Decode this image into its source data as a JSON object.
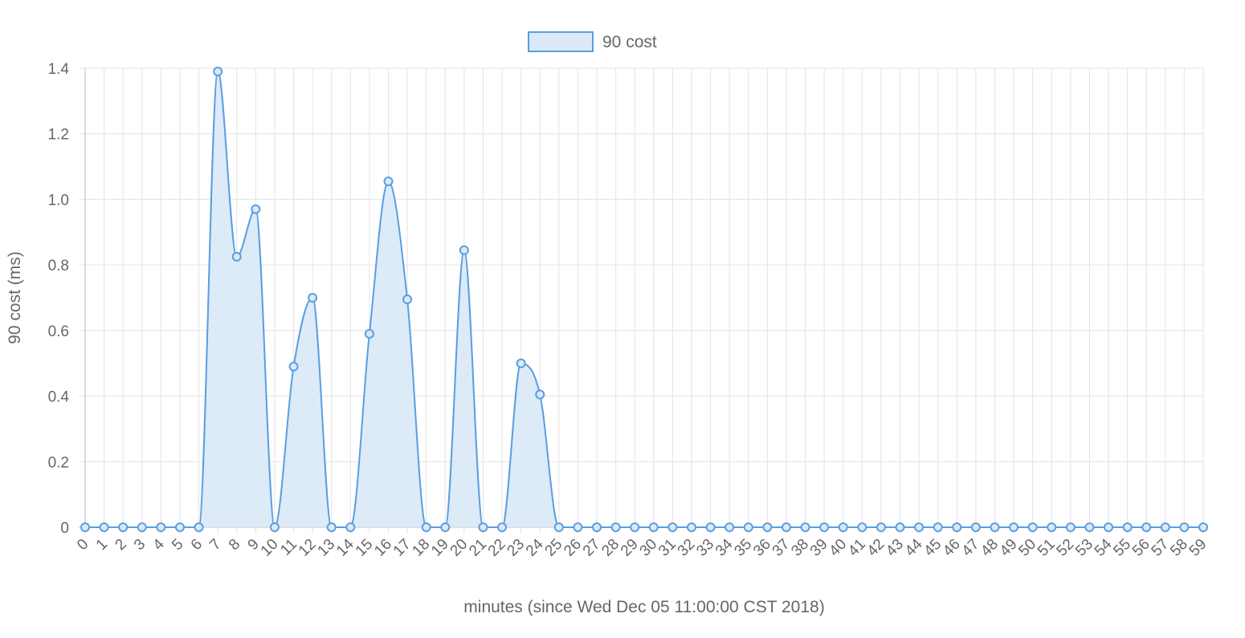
{
  "chart_data": {
    "type": "area",
    "title": "",
    "legend": {
      "position": "top",
      "entries": [
        "90 cost"
      ]
    },
    "xlabel": "minutes (since Wed Dec 05 11:00:00 CST 2018)",
    "ylabel": "90 cost (ms)",
    "ylim": [
      0,
      1.4
    ],
    "yticks": [
      "0",
      "0.2",
      "0.4",
      "0.6",
      "0.8",
      "1.0",
      "1.2",
      "1.4"
    ],
    "grid": true,
    "smooth": true,
    "fill": true,
    "colors": {
      "line": "#5a9ee0",
      "fill": "#dbe9f8",
      "grid": "#e3e3e3",
      "axis": "#bbbbbb",
      "text": "#666666"
    },
    "categories": [
      "0",
      "1",
      "2",
      "3",
      "4",
      "5",
      "6",
      "7",
      "8",
      "9",
      "10",
      "11",
      "12",
      "13",
      "14",
      "15",
      "16",
      "17",
      "18",
      "19",
      "20",
      "21",
      "22",
      "23",
      "24",
      "25",
      "26",
      "27",
      "28",
      "29",
      "30",
      "31",
      "32",
      "33",
      "34",
      "35",
      "36",
      "37",
      "38",
      "39",
      "40",
      "41",
      "42",
      "43",
      "44",
      "45",
      "46",
      "47",
      "48",
      "49",
      "50",
      "51",
      "52",
      "53",
      "54",
      "55",
      "56",
      "57",
      "58",
      "59"
    ],
    "series": [
      {
        "name": "90 cost",
        "values": [
          0,
          0,
          0,
          0,
          0,
          0,
          0,
          1.39,
          0.825,
          0.97,
          0,
          0.49,
          0.7,
          0,
          0,
          0.59,
          1.055,
          0.695,
          0,
          0,
          0.845,
          0,
          0,
          0.5,
          0.405,
          0,
          0,
          0,
          0,
          0,
          0,
          0,
          0,
          0,
          0,
          0,
          0,
          0,
          0,
          0,
          0,
          0,
          0,
          0,
          0,
          0,
          0,
          0,
          0,
          0,
          0,
          0,
          0,
          0,
          0,
          0,
          0,
          0,
          0,
          0
        ]
      }
    ]
  }
}
